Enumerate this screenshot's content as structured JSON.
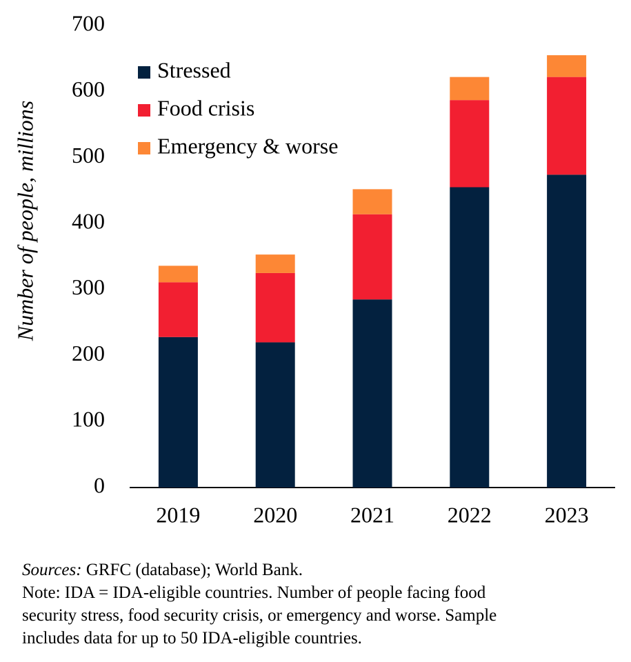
{
  "chart_data": {
    "type": "stacked_bar",
    "y_label": "Number of people, millions",
    "categories": [
      "2019",
      "2020",
      "2021",
      "2022",
      "2023"
    ],
    "series": [
      {
        "name": "Stressed",
        "color": "#03213f",
        "values": [
          228,
          220,
          285,
          455,
          474
        ]
      },
      {
        "name": "Food crisis",
        "color": "#f21f31",
        "values": [
          83,
          105,
          129,
          132,
          148
        ]
      },
      {
        "name": "Emergency & worse",
        "color": "#fd8735",
        "values": [
          25,
          28,
          38,
          35,
          33
        ]
      }
    ],
    "ylim": [
      0,
      700
    ],
    "yticks": [
      0,
      100,
      200,
      300,
      400,
      500,
      600,
      700
    ],
    "grid": false,
    "legend": "top-left"
  },
  "footnote": {
    "sources_label": "Sources:",
    "sources_text": "GRFC (database); World Bank.",
    "note_lines": [
      "Note: IDA = IDA-eligible countries. Number of people facing food",
      "security stress, food security crisis, or emergency and worse. Sample",
      "includes data for up to 50 IDA-eligible countries."
    ]
  }
}
